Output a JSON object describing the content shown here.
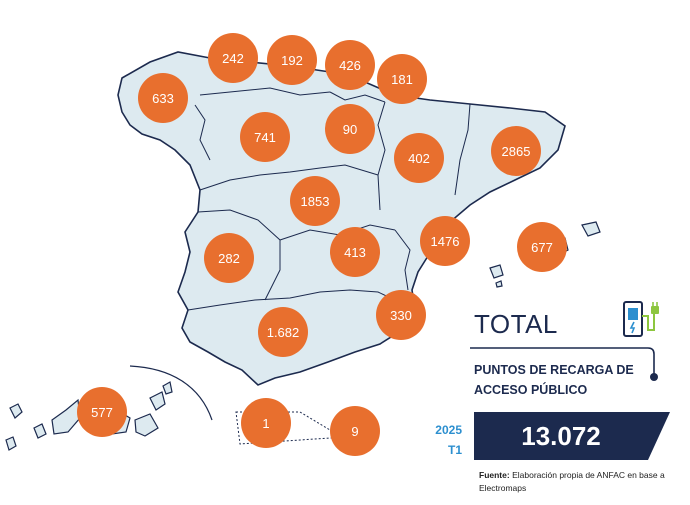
{
  "regions": [
    {
      "id": "galicia",
      "value": "633"
    },
    {
      "id": "asturias",
      "value": "242"
    },
    {
      "id": "cantabria",
      "value": "192"
    },
    {
      "id": "pais-vasco",
      "value": "426"
    },
    {
      "id": "navarra",
      "value": "181"
    },
    {
      "id": "castilla-y-leon",
      "value": "741"
    },
    {
      "id": "la-rioja",
      "value": "90"
    },
    {
      "id": "aragon",
      "value": "402"
    },
    {
      "id": "cataluna",
      "value": "2865"
    },
    {
      "id": "madrid",
      "value": "1853"
    },
    {
      "id": "extremadura",
      "value": "282"
    },
    {
      "id": "castilla-la-mancha",
      "value": "413"
    },
    {
      "id": "comunidad-valenciana",
      "value": "1476"
    },
    {
      "id": "baleares",
      "value": "677"
    },
    {
      "id": "murcia",
      "value": "330"
    },
    {
      "id": "andalucia",
      "value": "1.682"
    },
    {
      "id": "canarias",
      "value": "577"
    },
    {
      "id": "ceuta",
      "value": "1"
    },
    {
      "id": "melilla",
      "value": "9"
    }
  ],
  "legend": {
    "title": "TOTAL",
    "subtitle": "PUNTOS DE RECARGA DE ACCESO PÚBLICO",
    "year": "2025",
    "quarter": "T1",
    "total": "13.072"
  },
  "source": {
    "label": "Fuente:",
    "text": "Elaboración propia de ANFAC en base a Electromaps"
  },
  "icons": [
    "ev-charger-icon"
  ],
  "colors": {
    "land": "#DDEAF0",
    "border": "#1C2A4E",
    "bubble": "#E86F2E",
    "banner": "#1C2A4E",
    "accent": "#2C8FCF",
    "plug": "#8DC63F"
  }
}
